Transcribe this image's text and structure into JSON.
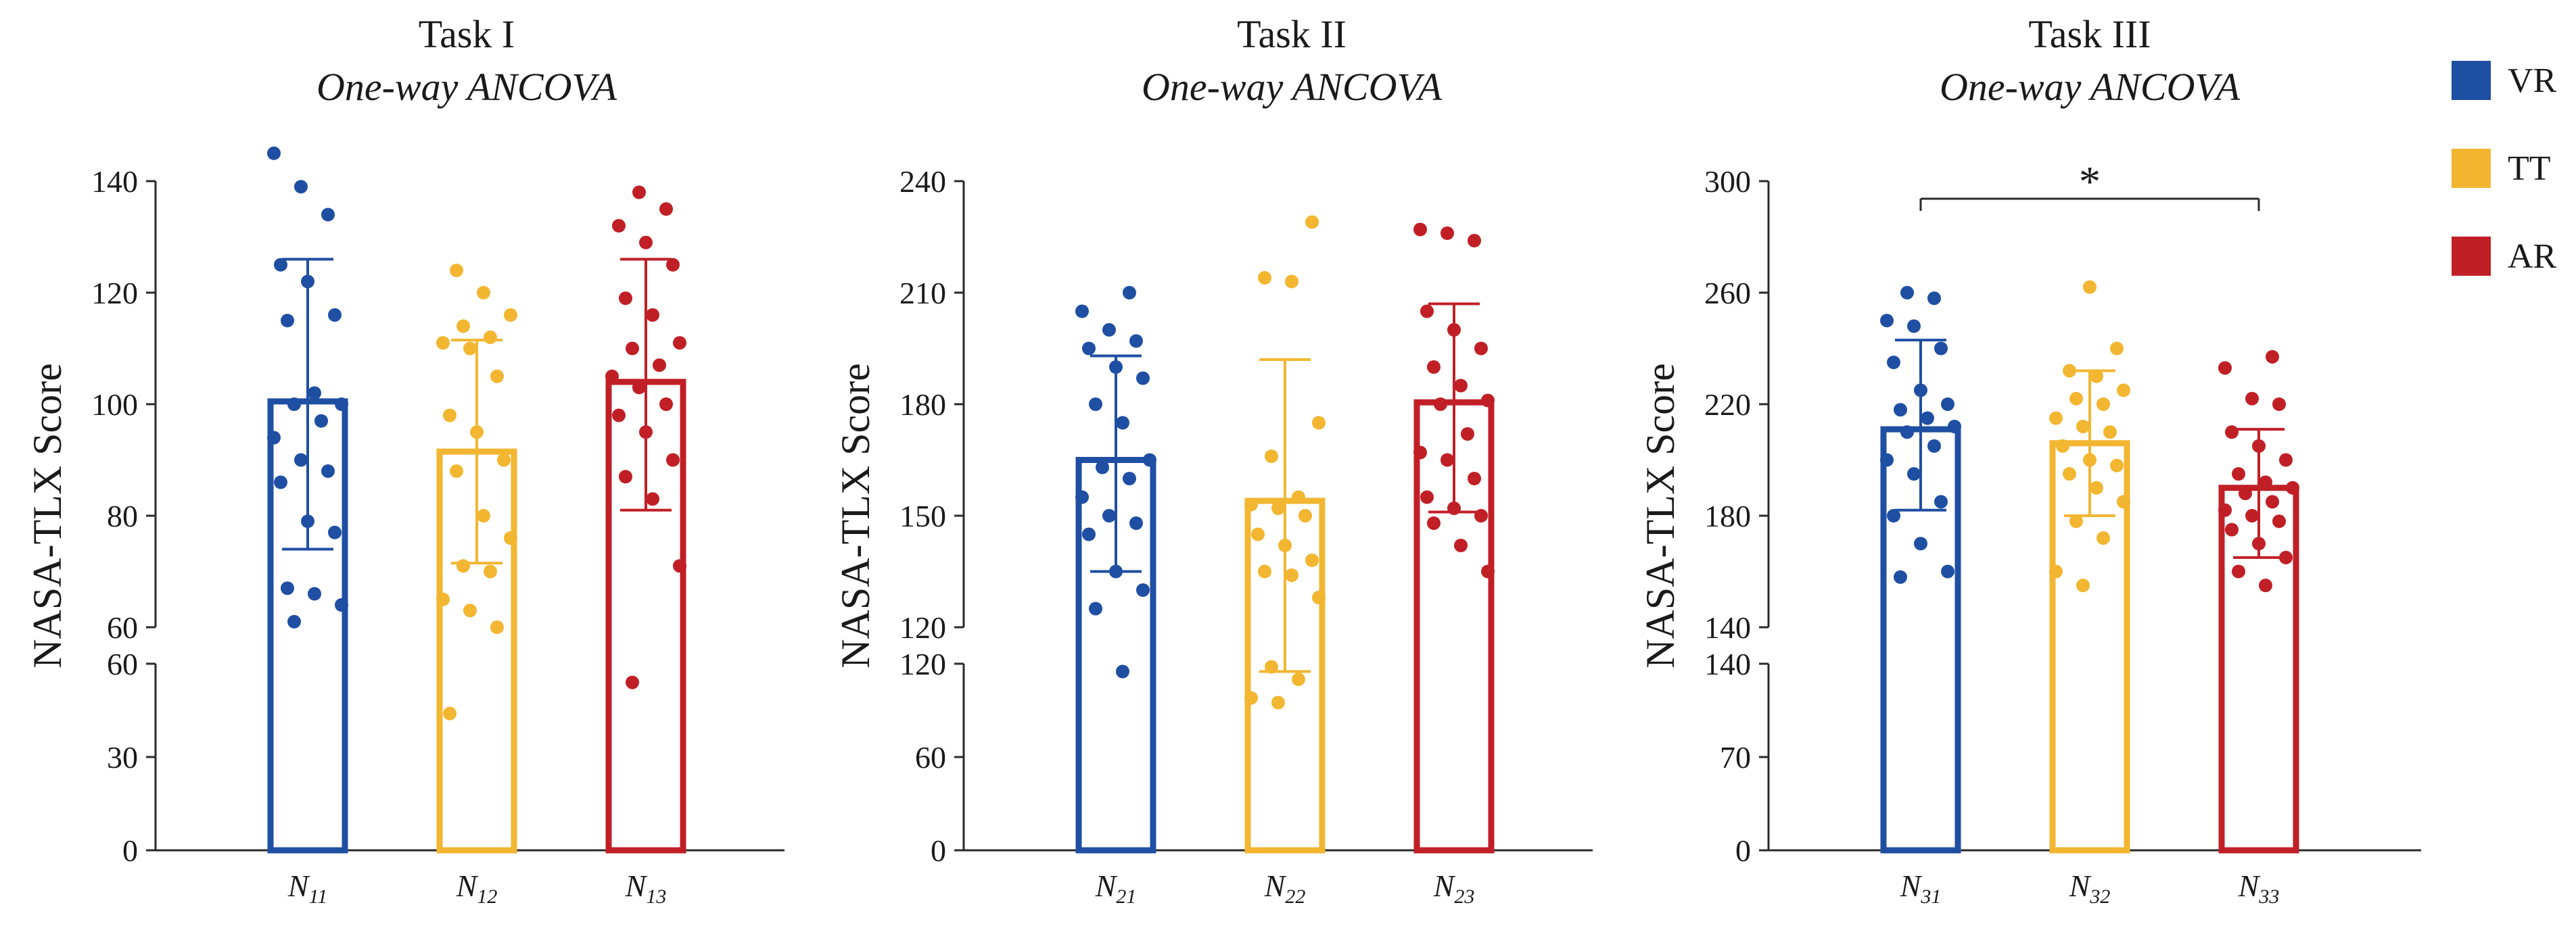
{
  "colors": {
    "VR": "#1f4fa3",
    "TT": "#f2b631",
    "AR": "#c11f26"
  },
  "legend": [
    {
      "label": "VR",
      "color": "#1f4fa3"
    },
    {
      "label": "TT",
      "color": "#f2b631"
    },
    {
      "label": "AR",
      "color": "#c11f26"
    }
  ],
  "chart_data": [
    {
      "type": "bar",
      "title": "Task I",
      "subtitle": "One-way ANCOVA",
      "ylabel": "NASA-TLX Score",
      "axis_break": true,
      "lower_ylim": [
        0,
        60
      ],
      "lower_ticks": [
        "0",
        "30",
        "60"
      ],
      "upper_ylim": [
        60,
        140
      ],
      "upper_ticks": [
        "60",
        "80",
        "100",
        "120",
        "140"
      ],
      "groups": [
        {
          "label_main": "N",
          "label_sub": "11",
          "group": "VR",
          "mean": 100.5,
          "error": [
            74,
            126
          ],
          "points": [
            145,
            139,
            134,
            125,
            122,
            116,
            115,
            102,
            100,
            100,
            97,
            94,
            90,
            88,
            86,
            79,
            77,
            67,
            66,
            64,
            61
          ]
        },
        {
          "label_main": "N",
          "label_sub": "12",
          "group": "TT",
          "mean": 91.5,
          "error": [
            71.5,
            111.5
          ],
          "points": [
            124,
            120,
            116,
            114,
            112,
            111,
            110,
            105,
            98,
            95,
            90,
            88,
            80,
            76,
            71,
            70,
            65,
            63,
            60,
            44
          ]
        },
        {
          "label_main": "N",
          "label_sub": "13",
          "group": "AR",
          "mean": 104,
          "error": [
            81,
            126
          ],
          "points": [
            138,
            135,
            132,
            129,
            125,
            119,
            116,
            111,
            110,
            107,
            105,
            103,
            100,
            98,
            95,
            90,
            87,
            83,
            71,
            54
          ]
        }
      ]
    },
    {
      "type": "bar",
      "title": "Task II",
      "subtitle": "One-way ANCOVA",
      "ylabel": "NASA-TLX Score",
      "axis_break": true,
      "lower_ylim": [
        0,
        120
      ],
      "lower_ticks": [
        "0",
        "60",
        "120"
      ],
      "upper_ylim": [
        120,
        240
      ],
      "upper_ticks": [
        "120",
        "150",
        "180",
        "210",
        "240"
      ],
      "groups": [
        {
          "label_main": "N",
          "label_sub": "21",
          "group": "VR",
          "mean": 165,
          "error": [
            135,
            193
          ],
          "points": [
            210,
            205,
            200,
            197,
            195,
            190,
            187,
            180,
            175,
            165,
            163,
            160,
            155,
            150,
            148,
            145,
            135,
            130,
            125,
            115
          ]
        },
        {
          "label_main": "N",
          "label_sub": "22",
          "group": "TT",
          "mean": 154,
          "error": [
            115,
            192
          ],
          "points": [
            229,
            214,
            213,
            175,
            166,
            155,
            153,
            152,
            150,
            145,
            142,
            138,
            135,
            134,
            128,
            118,
            110,
            98,
            95
          ]
        },
        {
          "label_main": "N",
          "label_sub": "23",
          "group": "AR",
          "mean": 180.5,
          "error": [
            151,
            207
          ],
          "points": [
            227,
            226,
            224,
            205,
            200,
            195,
            190,
            185,
            181,
            180,
            172,
            167,
            165,
            160,
            155,
            152,
            150,
            148,
            142,
            135
          ]
        }
      ]
    },
    {
      "type": "bar",
      "title": "Task III",
      "subtitle": "One-way ANCOVA",
      "ylabel": "NASA-TLX Score",
      "axis_break": true,
      "lower_ylim": [
        0,
        140
      ],
      "lower_ticks": [
        "0",
        "70",
        "140"
      ],
      "upper_ylim": [
        140,
        300
      ],
      "upper_ticks": [
        "140",
        "180",
        "220",
        "260",
        "300"
      ],
      "significance": {
        "label": "*",
        "between": [
          "N31",
          "N33"
        ]
      },
      "groups": [
        {
          "label_main": "N",
          "label_sub": "31",
          "group": "VR",
          "mean": 211,
          "error": [
            182,
            243
          ],
          "points": [
            260,
            258,
            250,
            248,
            240,
            235,
            225,
            220,
            218,
            215,
            212,
            210,
            205,
            200,
            195,
            185,
            180,
            170,
            160,
            158
          ]
        },
        {
          "label_main": "N",
          "label_sub": "32",
          "group": "TT",
          "mean": 206,
          "error": [
            180,
            232
          ],
          "points": [
            262,
            240,
            232,
            230,
            225,
            222,
            220,
            215,
            212,
            210,
            205,
            200,
            198,
            195,
            190,
            185,
            178,
            172,
            160,
            155
          ]
        },
        {
          "label_main": "N",
          "label_sub": "33",
          "group": "AR",
          "mean": 190,
          "error": [
            165,
            211
          ],
          "points": [
            237,
            233,
            222,
            220,
            210,
            205,
            200,
            195,
            192,
            190,
            188,
            185,
            182,
            180,
            178,
            175,
            170,
            165,
            160,
            155
          ]
        }
      ]
    }
  ]
}
